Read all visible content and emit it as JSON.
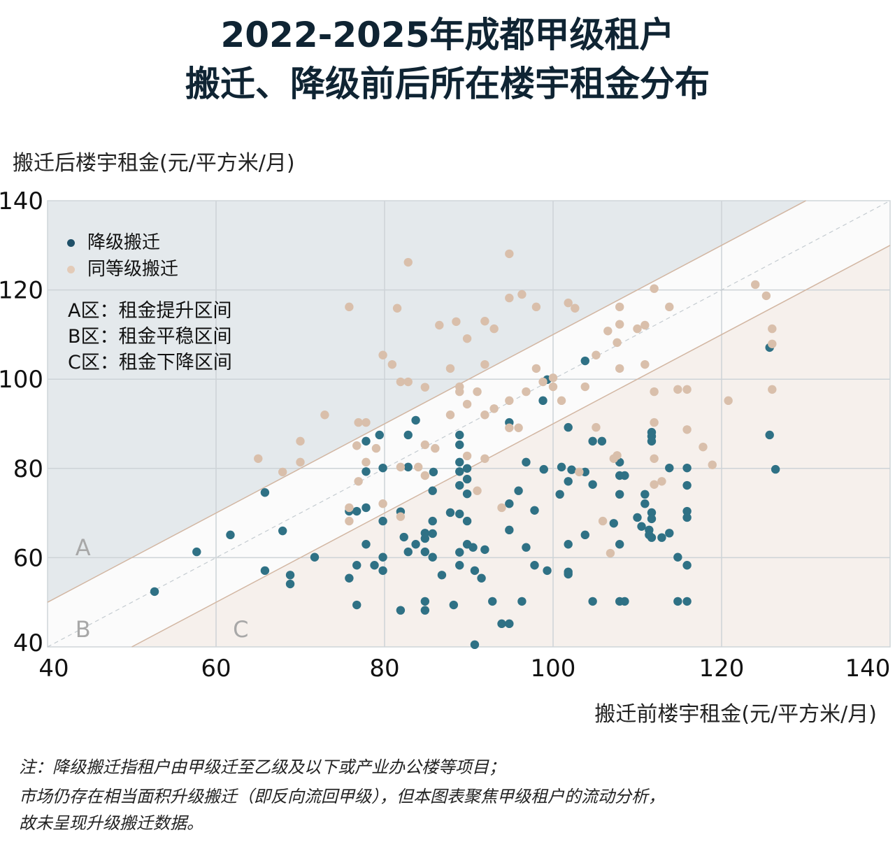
{
  "title": {
    "line1": "2022-2025年成都甲级租户",
    "line2": "搬迁、降级前后所在楼宇租金分布"
  },
  "notes": [
    "注：降级搬迁指租户由甲级迁至乙级及以下或产业办公楼等项目；",
    "市场仍存在相当面积升级搬迁（即反向流回甲级），但本图表聚焦甲级租户的流动分析，",
    "故未呈现升级搬迁数据。"
  ],
  "zone_notes": [
    "A区：租金提升区间",
    "B区：租金平稳区间",
    "C区：租金下降区间"
  ],
  "chart_data": {
    "type": "scatter",
    "title": "2022-2025年成都甲级租户 搬迁、降级前后所在楼宇租金分布",
    "xlabel": "搬迁前楼宇租金(元/平方米/月)",
    "ylabel": "搬迁后楼宇租金(元/平方米/月)",
    "xlim": [
      40,
      140
    ],
    "ylim": [
      40,
      140
    ],
    "xticks": [
      "40",
      "60",
      "80",
      "100",
      "120",
      "140"
    ],
    "yticks": [
      "40",
      "60",
      "80",
      "100",
      "120",
      "140"
    ],
    "grid": true,
    "legend_placement": "top-left",
    "zones": {
      "labels": [
        "A",
        "B",
        "C"
      ],
      "boundaries": "y = x + 10 (A above), y = x − 10 (C below), dashed y = x",
      "colors": {
        "A": "#e4e9ec",
        "B": "#fbfbfb",
        "C": "#f6f0ec"
      }
    },
    "series": [
      {
        "name": "降级搬迁",
        "color": "#2f7185",
        "points": [
          [
            52.7,
            52.4
          ],
          [
            57.7,
            61.3
          ],
          [
            61.7,
            65.1
          ],
          [
            65.8,
            74.6
          ],
          [
            65.8,
            57.1
          ],
          [
            67.9,
            66.0
          ],
          [
            68.8,
            56.1
          ],
          [
            68.8,
            54.1
          ],
          [
            71.7,
            60.1
          ],
          [
            75.8,
            70.4
          ],
          [
            75.8,
            55.4
          ],
          [
            76.7,
            70.4
          ],
          [
            76.7,
            58.3
          ],
          [
            76.7,
            49.4
          ],
          [
            77.8,
            86.1
          ],
          [
            77.8,
            79.3
          ],
          [
            77.8,
            71.2
          ],
          [
            77.8,
            63.0
          ],
          [
            78.8,
            58.3
          ],
          [
            79.4,
            87.5
          ],
          [
            79.8,
            80.1
          ],
          [
            79.8,
            68.2
          ],
          [
            79.8,
            60.1
          ],
          [
            79.8,
            57.1
          ],
          [
            81.9,
            70.3
          ],
          [
            81.9,
            48.2
          ],
          [
            82.3,
            64.6
          ],
          [
            82.8,
            80.3
          ],
          [
            82.8,
            87.5
          ],
          [
            82.8,
            61.3
          ],
          [
            83.7,
            90.8
          ],
          [
            83.7,
            63.0
          ],
          [
            84.8,
            65.5
          ],
          [
            84.8,
            64.3
          ],
          [
            84.8,
            61.3
          ],
          [
            84.8,
            50.2
          ],
          [
            84.8,
            48.2
          ],
          [
            85.7,
            68.2
          ],
          [
            85.7,
            60.1
          ],
          [
            85.7,
            65.4
          ],
          [
            85.7,
            75.0
          ],
          [
            85.8,
            79.2
          ],
          [
            86.8,
            56.1
          ],
          [
            87.8,
            70.1
          ],
          [
            88.2,
            49.4
          ],
          [
            88.9,
            87.5
          ],
          [
            88.9,
            85.3
          ],
          [
            88.9,
            81.4
          ],
          [
            88.9,
            79.3
          ],
          [
            88.9,
            76.2
          ],
          [
            88.9,
            69.8
          ],
          [
            88.9,
            61.2
          ],
          [
            88.9,
            58.3
          ],
          [
            89.8,
            80.0
          ],
          [
            89.8,
            74.3
          ],
          [
            89.8,
            77.6
          ],
          [
            89.8,
            68.2
          ],
          [
            89.8,
            63.0
          ],
          [
            90.5,
            62.3
          ],
          [
            90.7,
            40.5
          ],
          [
            90.7,
            57.1
          ],
          [
            91.5,
            55.4
          ],
          [
            91.9,
            61.8
          ],
          [
            92.8,
            50.2
          ],
          [
            93.9,
            45.2
          ],
          [
            94.8,
            45.2
          ],
          [
            94.8,
            90.3
          ],
          [
            94.8,
            72.1
          ],
          [
            94.8,
            66.2
          ],
          [
            95.9,
            75.0
          ],
          [
            96.3,
            50.2
          ],
          [
            96.8,
            81.4
          ],
          [
            96.8,
            62.3
          ],
          [
            97.8,
            70.6
          ],
          [
            97.8,
            58.3
          ],
          [
            98.8,
            95.2
          ],
          [
            98.9,
            79.8
          ],
          [
            99.3,
            99.9
          ],
          [
            99.3,
            57.1
          ],
          [
            100.8,
            74.2
          ],
          [
            101.0,
            80.3
          ],
          [
            101.8,
            89.2
          ],
          [
            101.8,
            77.1
          ],
          [
            101.8,
            63.0
          ],
          [
            101.8,
            56.8
          ],
          [
            101.8,
            56.3
          ],
          [
            102.2,
            79.7
          ],
          [
            103.8,
            104.1
          ],
          [
            103.8,
            79.2
          ],
          [
            103.8,
            65.1
          ],
          [
            104.7,
            86.1
          ],
          [
            104.7,
            76.4
          ],
          [
            104.7,
            50.2
          ],
          [
            105.8,
            86.1
          ],
          [
            107.2,
            67.7
          ],
          [
            107.9,
            81.4
          ],
          [
            107.9,
            78.4
          ],
          [
            107.9,
            74.2
          ],
          [
            107.9,
            63.0
          ],
          [
            107.9,
            50.2
          ],
          [
            108.5,
            50.2
          ],
          [
            108.5,
            78.4
          ],
          [
            110.0,
            69.0
          ],
          [
            110.5,
            67.0
          ],
          [
            110.9,
            74.2
          ],
          [
            110.9,
            72.1
          ],
          [
            111.4,
            66.2
          ],
          [
            111.4,
            65.1
          ],
          [
            111.7,
            88.1
          ],
          [
            111.7,
            87.2
          ],
          [
            111.7,
            86.1
          ],
          [
            111.7,
            70.1
          ],
          [
            111.7,
            68.7
          ],
          [
            111.7,
            64.5
          ],
          [
            112.9,
            64.5
          ],
          [
            113.8,
            80.1
          ],
          [
            113.8,
            65.5
          ],
          [
            114.8,
            60.1
          ],
          [
            114.8,
            50.2
          ],
          [
            115.9,
            80.1
          ],
          [
            115.9,
            76.2
          ],
          [
            115.9,
            70.4
          ],
          [
            115.9,
            69.0
          ],
          [
            115.9,
            58.3
          ],
          [
            115.9,
            50.2
          ],
          [
            125.7,
            107.1
          ],
          [
            125.7,
            87.5
          ],
          [
            126.4,
            79.8
          ]
        ]
      },
      {
        "name": "同等级搬迁",
        "color": "#d9bfab",
        "points": [
          [
            65.0,
            82.2
          ],
          [
            67.9,
            79.2
          ],
          [
            70.0,
            86.1
          ],
          [
            70.0,
            81.4
          ],
          [
            72.9,
            92.0
          ],
          [
            75.8,
            116.2
          ],
          [
            75.8,
            71.2
          ],
          [
            75.8,
            68.2
          ],
          [
            76.7,
            85.1
          ],
          [
            76.9,
            77.1
          ],
          [
            76.9,
            90.3
          ],
          [
            77.8,
            90.3
          ],
          [
            77.8,
            81.4
          ],
          [
            79.0,
            84.5
          ],
          [
            79.8,
            105.4
          ],
          [
            79.8,
            72.1
          ],
          [
            80.9,
            103.3
          ],
          [
            81.5,
            115.9
          ],
          [
            81.9,
            99.4
          ],
          [
            82.8,
            99.4
          ],
          [
            81.9,
            80.3
          ],
          [
            81.9,
            69.2
          ],
          [
            82.8,
            126.2
          ],
          [
            84.0,
            80.3
          ],
          [
            84.8,
            98.2
          ],
          [
            84.8,
            85.3
          ],
          [
            84.8,
            78.4
          ],
          [
            86.0,
            84.5
          ],
          [
            86.5,
            112.1
          ],
          [
            87.8,
            102.4
          ],
          [
            87.8,
            92.0
          ],
          [
            88.5,
            112.9
          ],
          [
            88.9,
            98.3
          ],
          [
            88.9,
            97.2
          ],
          [
            89.8,
            109.1
          ],
          [
            89.8,
            94.4
          ],
          [
            89.8,
            82.8
          ],
          [
            91.0,
            97.2
          ],
          [
            91.0,
            75.0
          ],
          [
            91.9,
            113.0
          ],
          [
            91.9,
            103.3
          ],
          [
            91.9,
            92.0
          ],
          [
            91.9,
            82.2
          ],
          [
            93.0,
            111.3
          ],
          [
            93.0,
            93.4
          ],
          [
            93.9,
            71.2
          ],
          [
            94.8,
            118.2
          ],
          [
            94.8,
            95.2
          ],
          [
            94.8,
            128.1
          ],
          [
            94.8,
            89.1
          ],
          [
            95.9,
            89.1
          ],
          [
            96.3,
            119.0
          ],
          [
            96.8,
            97.2
          ],
          [
            98.0,
            116.2
          ],
          [
            98.0,
            102.4
          ],
          [
            98.8,
            99.4
          ],
          [
            100.0,
            100.3
          ],
          [
            100.0,
            98.3
          ],
          [
            101.0,
            95.2
          ],
          [
            101.8,
            117.1
          ],
          [
            102.6,
            115.9
          ],
          [
            103.1,
            79.2
          ],
          [
            103.8,
            98.3
          ],
          [
            105.1,
            105.4
          ],
          [
            105.1,
            89.2
          ],
          [
            105.9,
            68.2
          ],
          [
            106.5,
            110.8
          ],
          [
            106.8,
            61.0
          ],
          [
            107.2,
            82.2
          ],
          [
            107.6,
            82.9
          ],
          [
            107.6,
            108.2
          ],
          [
            107.9,
            116.2
          ],
          [
            107.9,
            112.3
          ],
          [
            107.9,
            102.4
          ],
          [
            110.0,
            111.3
          ],
          [
            110.9,
            112.1
          ],
          [
            110.9,
            103.3
          ],
          [
            112.0,
            120.3
          ],
          [
            112.0,
            97.2
          ],
          [
            112.0,
            90.3
          ],
          [
            112.0,
            82.2
          ],
          [
            112.0,
            76.4
          ],
          [
            112.9,
            77.1
          ],
          [
            113.8,
            116.2
          ],
          [
            114.8,
            97.7
          ],
          [
            115.9,
            97.7
          ],
          [
            115.9,
            88.7
          ],
          [
            117.8,
            84.8
          ],
          [
            118.9,
            80.8
          ],
          [
            120.8,
            95.2
          ],
          [
            124.0,
            121.2
          ],
          [
            125.3,
            118.7
          ],
          [
            126.0,
            111.3
          ],
          [
            126.0,
            107.9
          ],
          [
            126.0,
            97.7
          ]
        ]
      }
    ]
  }
}
